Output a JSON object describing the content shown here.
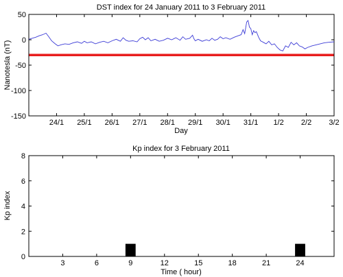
{
  "chart_data": [
    {
      "type": "line",
      "title": "DST index for 24 January 2011 to 3 February 2011",
      "xlabel": "Day",
      "ylabel": "Nanotesla (nT)",
      "xlim": [
        0,
        11
      ],
      "ylim": [
        -150,
        50
      ],
      "yticks": [
        50,
        0,
        -50,
        -100,
        -150
      ],
      "xticks": [
        {
          "x": 1,
          "label": "24/1"
        },
        {
          "x": 2,
          "label": "25/1"
        },
        {
          "x": 3,
          "label": "26/1"
        },
        {
          "x": 4,
          "label": "27/1"
        },
        {
          "x": 5,
          "label": "28/1"
        },
        {
          "x": 6,
          "label": "29/1"
        },
        {
          "x": 7,
          "label": "30/1"
        },
        {
          "x": 8,
          "label": "31/1"
        },
        {
          "x": 9,
          "label": "1/2"
        },
        {
          "x": 10,
          "label": "2/2"
        },
        {
          "x": 11,
          "label": "3/2"
        }
      ],
      "grid": false,
      "series": [
        {
          "color": "#3b3bd6",
          "points": [
            [
              0.0,
              1
            ],
            [
              0.12,
              3
            ],
            [
              0.25,
              5
            ],
            [
              0.38,
              8
            ],
            [
              0.5,
              10
            ],
            [
              0.62,
              13
            ],
            [
              0.72,
              6
            ],
            [
              0.82,
              -2
            ],
            [
              0.95,
              -8
            ],
            [
              1.05,
              -12
            ],
            [
              1.15,
              -10
            ],
            [
              1.3,
              -8
            ],
            [
              1.45,
              -9
            ],
            [
              1.6,
              -6
            ],
            [
              1.75,
              -4
            ],
            [
              1.9,
              -7
            ],
            [
              2.0,
              -3
            ],
            [
              2.1,
              -6
            ],
            [
              2.25,
              -4
            ],
            [
              2.4,
              -8
            ],
            [
              2.55,
              -5
            ],
            [
              2.7,
              -3
            ],
            [
              2.85,
              -6
            ],
            [
              3.0,
              -2
            ],
            [
              3.15,
              1
            ],
            [
              3.3,
              -3
            ],
            [
              3.4,
              4
            ],
            [
              3.5,
              -1
            ],
            [
              3.6,
              -3
            ],
            [
              3.75,
              -2
            ],
            [
              3.9,
              -4
            ],
            [
              4.0,
              2
            ],
            [
              4.1,
              5
            ],
            [
              4.2,
              0
            ],
            [
              4.3,
              4
            ],
            [
              4.4,
              -2
            ],
            [
              4.55,
              1
            ],
            [
              4.7,
              -3
            ],
            [
              4.85,
              -1
            ],
            [
              5.0,
              3
            ],
            [
              5.15,
              0
            ],
            [
              5.3,
              4
            ],
            [
              5.45,
              -1
            ],
            [
              5.55,
              6
            ],
            [
              5.65,
              1
            ],
            [
              5.8,
              3
            ],
            [
              5.9,
              9
            ],
            [
              5.95,
              2
            ],
            [
              6.0,
              -2
            ],
            [
              6.1,
              1
            ],
            [
              6.25,
              -3
            ],
            [
              6.4,
              0
            ],
            [
              6.5,
              -2
            ],
            [
              6.6,
              3
            ],
            [
              6.7,
              -1
            ],
            [
              6.8,
              1
            ],
            [
              6.9,
              6
            ],
            [
              7.0,
              2
            ],
            [
              7.1,
              4
            ],
            [
              7.25,
              1
            ],
            [
              7.4,
              5
            ],
            [
              7.55,
              8
            ],
            [
              7.65,
              10
            ],
            [
              7.72,
              20
            ],
            [
              7.78,
              12
            ],
            [
              7.85,
              35
            ],
            [
              7.9,
              38
            ],
            [
              7.95,
              25
            ],
            [
              8.0,
              22
            ],
            [
              8.05,
              10
            ],
            [
              8.1,
              18
            ],
            [
              8.15,
              14
            ],
            [
              8.2,
              16
            ],
            [
              8.28,
              5
            ],
            [
              8.35,
              -2
            ],
            [
              8.45,
              -5
            ],
            [
              8.55,
              -8
            ],
            [
              8.65,
              -3
            ],
            [
              8.75,
              -10
            ],
            [
              8.85,
              -8
            ],
            [
              8.95,
              -15
            ],
            [
              9.05,
              -20
            ],
            [
              9.15,
              -22
            ],
            [
              9.25,
              -12
            ],
            [
              9.35,
              -15
            ],
            [
              9.45,
              -5
            ],
            [
              9.55,
              -10
            ],
            [
              9.65,
              -6
            ],
            [
              9.75,
              -12
            ],
            [
              9.85,
              -14
            ],
            [
              9.95,
              -18
            ],
            [
              10.05,
              -15
            ],
            [
              10.2,
              -12
            ],
            [
              10.35,
              -10
            ],
            [
              10.5,
              -8
            ],
            [
              10.65,
              -6
            ],
            [
              10.8,
              -5
            ],
            [
              11.0,
              -4
            ]
          ]
        }
      ],
      "reference_lines": [
        {
          "y": -30,
          "color": "#e81e1e"
        }
      ]
    },
    {
      "type": "bar",
      "title": "Kp index for 3 February 2011",
      "xlabel": "Time ( hour)",
      "ylabel": "Kp index",
      "xlim": [
        0,
        27
      ],
      "ylim": [
        0,
        8
      ],
      "xticks": [
        3,
        6,
        9,
        12,
        15,
        18,
        21,
        24
      ],
      "yticks": [
        0,
        2,
        4,
        6,
        8
      ],
      "grid": false,
      "bars": [
        {
          "x": 9,
          "value": 1,
          "color": "#000000"
        },
        {
          "x": 24,
          "value": 1,
          "color": "#000000"
        }
      ]
    }
  ]
}
